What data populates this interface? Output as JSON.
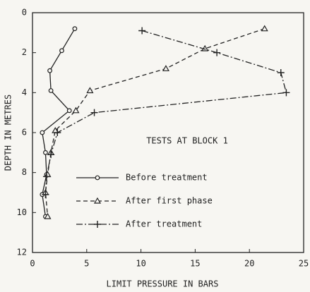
{
  "chart_data": {
    "type": "line",
    "annotation": "TESTS AT BLOCK 1",
    "x_label": "LIMIT PRESSURE IN BARS",
    "y_label": "DEPTH IN METRES",
    "xlim": [
      0,
      25
    ],
    "xticks": [
      0,
      5,
      10,
      15,
      20,
      25
    ],
    "ylim": [
      0,
      12
    ],
    "yticks": [
      0,
      2,
      4,
      6,
      8,
      10,
      12
    ],
    "y_inverted": true,
    "series": [
      {
        "name": "Before treatment",
        "color": "#222222",
        "marker": "circle",
        "dash": "solid",
        "x": [
          3.9,
          2.7,
          1.6,
          1.7,
          3.4,
          0.9,
          1.2,
          1.3,
          0.9,
          1.2
        ],
        "values": [
          0.8,
          1.9,
          2.9,
          3.9,
          4.9,
          6.0,
          7.0,
          8.1,
          9.1,
          10.2
        ]
      },
      {
        "name": "After first phase",
        "color": "#222222",
        "marker": "triangle",
        "dash": "dashed",
        "x": [
          21.4,
          15.9,
          12.3,
          5.3,
          4.0,
          2.1,
          1.7,
          1.4,
          1.2,
          1.4
        ],
        "values": [
          0.8,
          1.8,
          2.8,
          3.9,
          4.9,
          5.9,
          7.0,
          8.1,
          9.0,
          10.2
        ]
      },
      {
        "name": "After treatment",
        "color": "#222222",
        "marker": "plus",
        "dash": "dashdot",
        "x": [
          10.1,
          17.0,
          22.9,
          23.4,
          5.7,
          2.3,
          1.7,
          1.3,
          1.2
        ],
        "values": [
          0.9,
          2.0,
          3.0,
          4.0,
          5.0,
          6.0,
          7.1,
          8.2,
          9.1
        ]
      }
    ]
  }
}
